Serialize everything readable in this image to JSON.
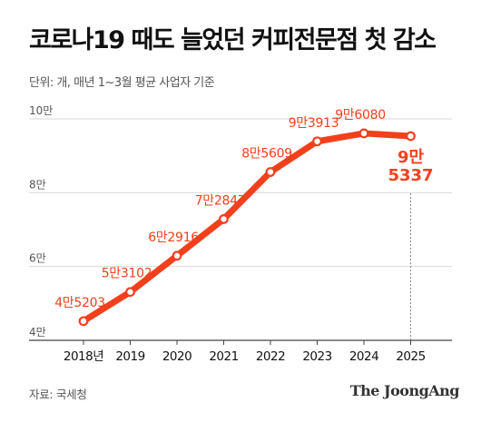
{
  "title": "코로나19 때도 늘었던 커피전문점 첫 감소",
  "subtitle": "단위: 개, 매년 1~3월 평균 사업자 기준",
  "source": "자료: 국세청",
  "brand": "The JoongAng",
  "colors": {
    "line": "#f2401c",
    "label": "#f2401c",
    "grid": "#d9d9d9",
    "axis": "#444444"
  },
  "chart_data": {
    "type": "line",
    "categories": [
      "2018년",
      "2019",
      "2020",
      "2021",
      "2022",
      "2023",
      "2024",
      "2025"
    ],
    "values": [
      45203,
      53102,
      62916,
      72847,
      85609,
      93913,
      96080,
      95337
    ],
    "data_labels": [
      "4만5203",
      "5만3102",
      "6만2916",
      "7만2847",
      "8만5609",
      "9만3913",
      "9만6080",
      "9만\n5337"
    ],
    "yticks": [
      40000,
      60000,
      80000,
      100000
    ],
    "ytick_labels": [
      "4만",
      "6만",
      "8만",
      "10만"
    ],
    "ylim": [
      40000,
      100000
    ],
    "grid": true,
    "highlight_last": true
  }
}
